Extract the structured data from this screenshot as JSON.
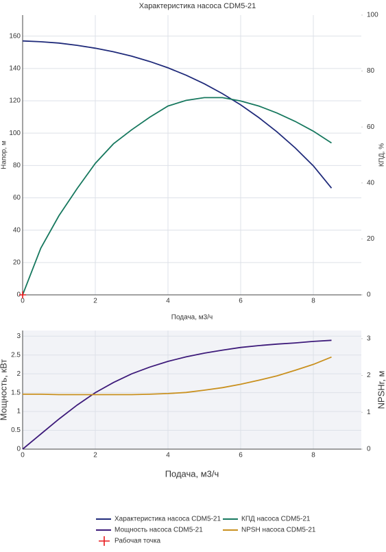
{
  "chart_data": [
    {
      "type": "line",
      "title": "Характеристика насоса CDM5-21",
      "x_label": "Подача, м3/ч",
      "y_label": "Напор, м",
      "y2_label": "КПД, %",
      "x": [
        0,
        0.5,
        1,
        1.5,
        2,
        2.5,
        3,
        3.5,
        4,
        4.5,
        5,
        5.5,
        6,
        6.5,
        7,
        7.5,
        8,
        8.5
      ],
      "series": [
        {
          "name": "Характеристика насоса CDM5-21",
          "color": "#1f2a7a",
          "values": [
            157,
            156.5,
            155.7,
            154.3,
            152.5,
            150.3,
            147.6,
            144.3,
            140.4,
            135.8,
            130.5,
            124.4,
            117.5,
            109.6,
            100.8,
            90.9,
            79.8,
            66
          ]
        },
        {
          "name": "КПД насоса CDM5-21",
          "color": "#16785e",
          "axis": "y2",
          "values": [
            0,
            16.7,
            28.3,
            38,
            47,
            54,
            59,
            63.5,
            67.5,
            69.5,
            70.5,
            70.5,
            69.3,
            67.5,
            65,
            62,
            58.5,
            54.3
          ]
        },
        {
          "name": "Рабочая точка",
          "color": "#e8191c",
          "mode": "markers",
          "x": [
            0
          ],
          "values": [
            0
          ]
        }
      ],
      "xlim": [
        0,
        9.32
      ],
      "xticks": [
        0,
        2,
        4,
        6,
        8
      ],
      "ylim": [
        0,
        173
      ],
      "yticks": [
        0,
        20,
        40,
        60,
        80,
        100,
        120,
        140,
        160
      ],
      "y2lim": [
        0,
        100
      ],
      "y2ticks": [
        0,
        20,
        40,
        60,
        80,
        100
      ],
      "grid": true
    },
    {
      "type": "line",
      "x_label": "Подача, м3/ч",
      "y_label": "Мощность, кВт",
      "y2_label": "NPSHr, м",
      "x": [
        0,
        0.5,
        1,
        1.5,
        2,
        2.5,
        3,
        3.5,
        4,
        4.5,
        5,
        5.5,
        6,
        6.5,
        7,
        7.5,
        8,
        8.5
      ],
      "series": [
        {
          "name": "Мощность насоса CDM5-21",
          "color": "#3d1a7a",
          "values": [
            0,
            0.4,
            0.8,
            1.17,
            1.5,
            1.77,
            2.0,
            2.18,
            2.33,
            2.45,
            2.55,
            2.63,
            2.7,
            2.75,
            2.79,
            2.82,
            2.86,
            2.89
          ]
        },
        {
          "name": "NPSH насоса CDM5-21",
          "color": "#c9901e",
          "axis": "y2",
          "values": [
            1.49,
            1.49,
            1.48,
            1.48,
            1.48,
            1.48,
            1.48,
            1.49,
            1.51,
            1.54,
            1.6,
            1.67,
            1.76,
            1.87,
            1.99,
            2.14,
            2.3,
            2.5
          ]
        }
      ],
      "xlim": [
        0,
        9.32
      ],
      "xticks": [
        0,
        2,
        4,
        6,
        8
      ],
      "ylim": [
        0,
        3.15
      ],
      "yticks": [
        0,
        0.5,
        1,
        1.5,
        2,
        2.5,
        3
      ],
      "y2lim": [
        0,
        3.22
      ],
      "y2ticks": [
        0,
        1,
        2,
        3
      ],
      "grid": true
    }
  ]
}
